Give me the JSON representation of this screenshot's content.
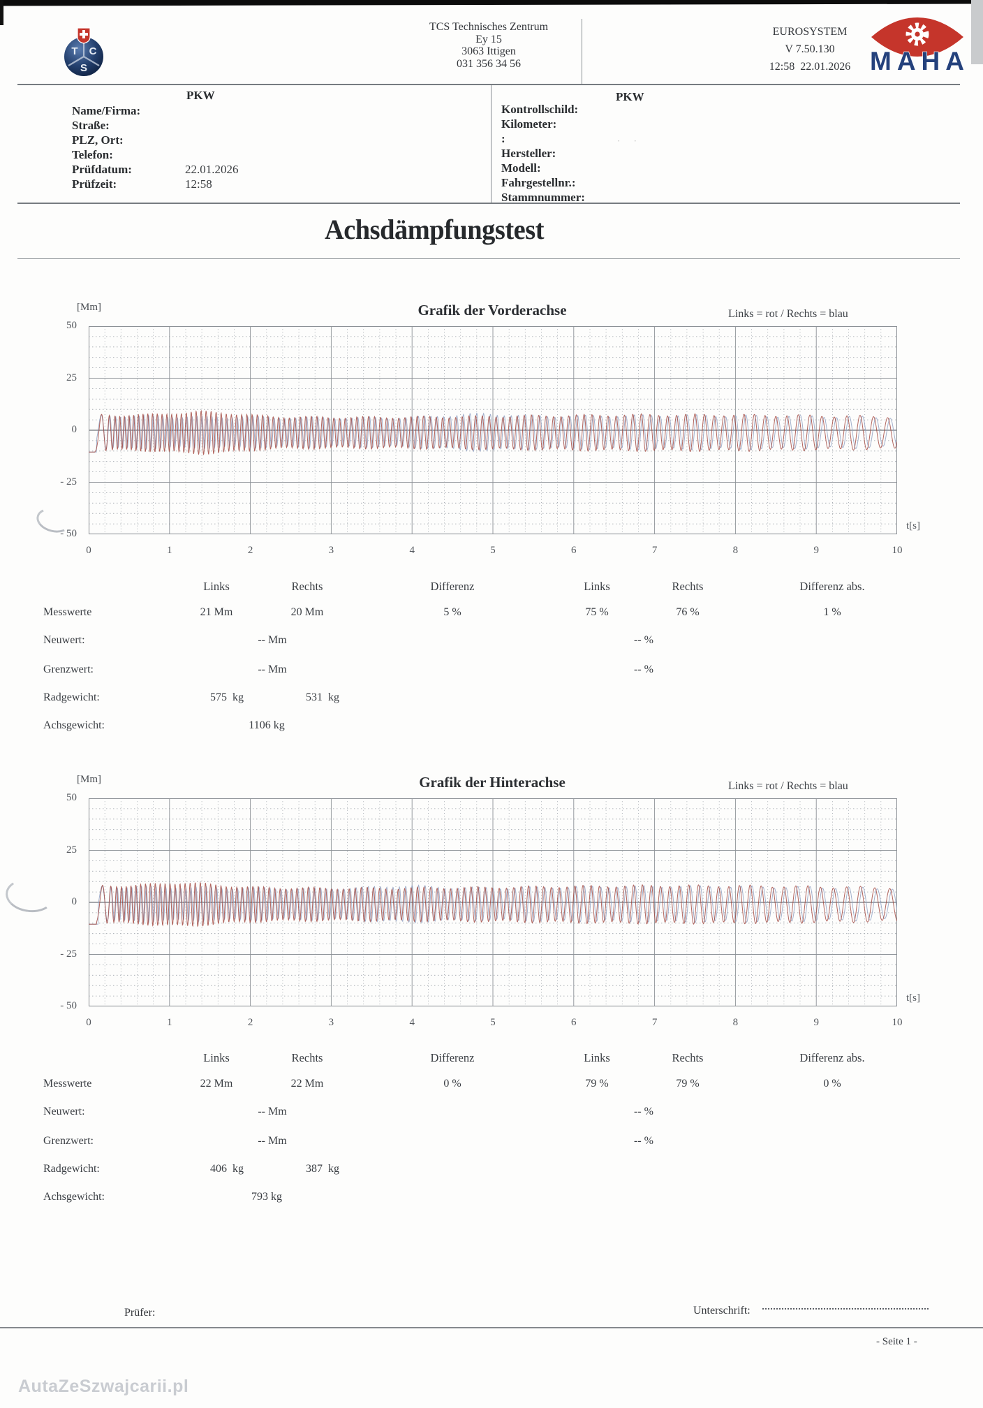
{
  "header": {
    "station_lines": [
      "TCS Technisches Zentrum",
      "Ey 15",
      "3063 Ittigen",
      "031 356 34 56"
    ],
    "system_lines": [
      "EUROSYSTEM",
      "V 7.50.130",
      "12:58  22.01.2026"
    ],
    "tcs_letters": [
      "T",
      "C",
      "S"
    ],
    "maha_text": "MAHA"
  },
  "vehicle_form": {
    "left_title": "PKW",
    "right_title": "PKW",
    "left_fields": [
      {
        "label": "Name/Firma:",
        "value": ""
      },
      {
        "label": "Straße:",
        "value": ""
      },
      {
        "label": "PLZ, Ort:",
        "value": ""
      },
      {
        "label": "Telefon:",
        "value": ""
      },
      {
        "label": "Prüfdatum:",
        "value": "22.01.2026"
      },
      {
        "label": "Prüfzeit:",
        "value": "12:58"
      }
    ],
    "right_fields": [
      {
        "label": "Kontrollschild:",
        "value": ""
      },
      {
        "label": "Kilometer:",
        "value": ""
      },
      {
        "label": ":",
        "value": ""
      },
      {
        "label": "Hersteller:",
        "value": ""
      },
      {
        "label": "Modell:",
        "value": ""
      },
      {
        "label": "Fahrgestellnr.:",
        "value": ""
      },
      {
        "label": "Stammnummer:",
        "value": ""
      }
    ]
  },
  "document_title": "Achsdämpfungstest",
  "chart_data": [
    {
      "type": "line",
      "title": "Grafik der Vorderachse",
      "y_unit": "[Mm]",
      "x_unit": "t[s]",
      "legend": "Links = rot / Rechts = blau",
      "xlim": [
        0,
        10
      ],
      "ylim": [
        -50,
        50
      ],
      "x_ticks": [
        "0",
        "1",
        "2",
        "3",
        "4",
        "5",
        "6",
        "7",
        "8",
        "9",
        "10"
      ],
      "y_ticks": [
        "50",
        "25",
        "0",
        "- 25",
        "- 50"
      ],
      "grid": {
        "major_x_s": 1,
        "minor_x_s": 0.2,
        "major_y_mm": 25,
        "minor_y_mm": 5
      },
      "series": [
        {
          "name": "Links",
          "color_name": "rot",
          "color": "#a1443c",
          "signal": {
            "kind": "chirp",
            "rest_mm": -10.5,
            "start_s": 0.08,
            "f_start_hz": 18,
            "f_end_hz": 5.5,
            "amp_mm": 8.6,
            "offset_mm": -1.2,
            "bump_s": 1.45,
            "bump_amp_mm": 2.2,
            "phase_rad": 0
          }
        },
        {
          "name": "Rechts",
          "color_name": "blau",
          "color": "#8fa0c2",
          "signal": {
            "kind": "chirp",
            "rest_mm": -10.5,
            "start_s": 0.1,
            "f_start_hz": 18,
            "f_end_hz": 5.5,
            "amp_mm": 8.0,
            "offset_mm": -1.0,
            "bump_s": 4.8,
            "bump_amp_mm": 1.7,
            "phase_rad": 1.1
          }
        }
      ],
      "results": {
        "columns": [
          "Links",
          "Rechts",
          "Differenz",
          "Links",
          "Rechts",
          "Differenz abs."
        ],
        "rows": [
          {
            "label": "Messwerte",
            "kind": "measure",
            "values": [
              "21 Mm",
              "20 Mm",
              "5 %",
              "75 %",
              "76 %",
              "1 %"
            ]
          },
          {
            "label": "Neuwert:",
            "kind": "pair",
            "values": [
              "-- Mm",
              "-- %"
            ]
          },
          {
            "label": "Grenzwert:",
            "kind": "pair",
            "values": [
              "-- Mm",
              "-- %"
            ]
          },
          {
            "label": "Radgewicht:",
            "kind": "weights",
            "values": [
              "575  kg",
              "531  kg"
            ]
          },
          {
            "label": "Achsgewicht:",
            "kind": "single",
            "values": [
              "1106 kg"
            ]
          }
        ]
      }
    },
    {
      "type": "line",
      "title": "Grafik der Hinterachse",
      "y_unit": "[Mm]",
      "x_unit": "t[s]",
      "legend": "Links = rot / Rechts = blau",
      "xlim": [
        0,
        10
      ],
      "ylim": [
        -50,
        50
      ],
      "x_ticks": [
        "0",
        "1",
        "2",
        "3",
        "4",
        "5",
        "6",
        "7",
        "8",
        "9",
        "10"
      ],
      "y_ticks": [
        "50",
        "25",
        "0",
        "- 25",
        "- 50"
      ],
      "grid": {
        "major_x_s": 1,
        "minor_x_s": 0.2,
        "major_y_mm": 25,
        "minor_y_mm": 5
      },
      "series": [
        {
          "name": "Links",
          "color_name": "rot",
          "color": "#a1443c",
          "signal": {
            "kind": "chirp",
            "rest_mm": -10.5,
            "start_s": 0.1,
            "f_start_hz": 17.5,
            "f_end_hz": 5.2,
            "amp_mm": 9.0,
            "offset_mm": -1.0,
            "bump_s": 1.2,
            "bump_amp_mm": 2.0,
            "phase_rad": 0.4
          }
        },
        {
          "name": "Rechts",
          "color_name": "blau",
          "color": "#8fa0c2",
          "signal": {
            "kind": "chirp",
            "rest_mm": -10.5,
            "start_s": 0.12,
            "f_start_hz": 17.5,
            "f_end_hz": 5.2,
            "amp_mm": 8.4,
            "offset_mm": -0.8,
            "bump_s": 3.9,
            "bump_amp_mm": 1.6,
            "phase_rad": 1.5
          }
        }
      ],
      "results": {
        "columns": [
          "Links",
          "Rechts",
          "Differenz",
          "Links",
          "Rechts",
          "Differenz abs."
        ],
        "rows": [
          {
            "label": "Messwerte",
            "kind": "measure",
            "values": [
              "22 Mm",
              "22 Mm",
              "0 %",
              "79 %",
              "79 %",
              "0 %"
            ]
          },
          {
            "label": "Neuwert:",
            "kind": "pair",
            "values": [
              "-- Mm",
              "-- %"
            ]
          },
          {
            "label": "Grenzwert:",
            "kind": "pair",
            "values": [
              "-- Mm",
              "-- %"
            ]
          },
          {
            "label": "Radgewicht:",
            "kind": "weights",
            "values": [
              "406  kg",
              "387  kg"
            ]
          },
          {
            "label": "Achsgewicht:",
            "kind": "single",
            "values": [
              "793 kg"
            ]
          }
        ]
      }
    }
  ],
  "footer": {
    "pruefer_label": "Prüfer:",
    "unterschrift_label": "Unterschrift:",
    "page_label": "- Seite 1 -"
  },
  "watermark": "AutaZeSzwajcarii.pl"
}
